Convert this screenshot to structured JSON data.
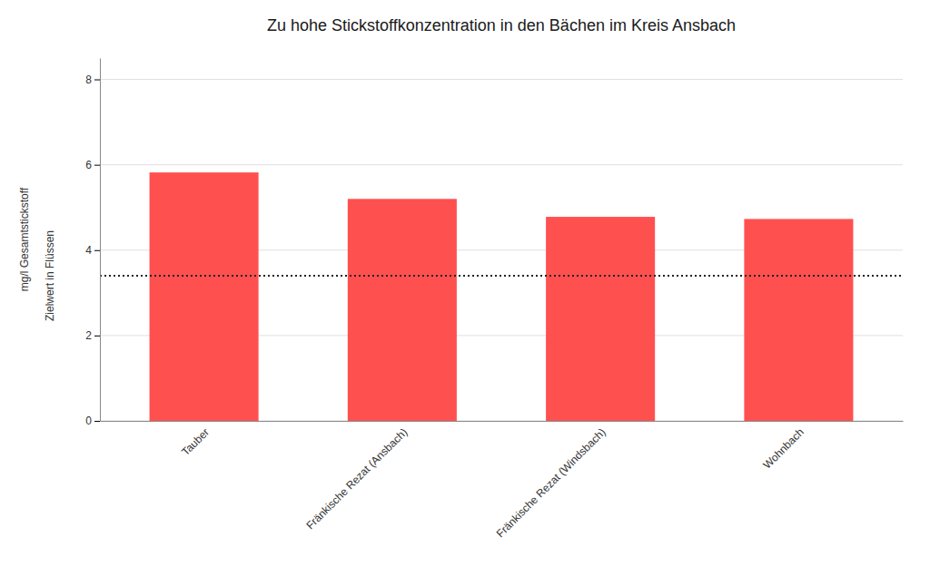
{
  "chart_data": {
    "type": "bar",
    "title": "Zu hohe Stickstoffkonzentration in den Bächen im Kreis Ansbach",
    "ylabel": "mg/l Gesamtstickstoff",
    "categories": [
      "Tauber",
      "Fränkische Rezat (Ansbach)",
      "Fränkische Rezat (Windsbach)",
      "Wohnbach"
    ],
    "values": [
      5.82,
      5.2,
      4.78,
      4.73
    ],
    "color": "#FF5050",
    "target_line": {
      "value": 3.4,
      "label": "Zielwert in Flüssen",
      "color": "#222222"
    },
    "ylim": [
      0,
      8.5
    ],
    "yticks": [
      0,
      2,
      4,
      6,
      8
    ],
    "grid": true
  }
}
